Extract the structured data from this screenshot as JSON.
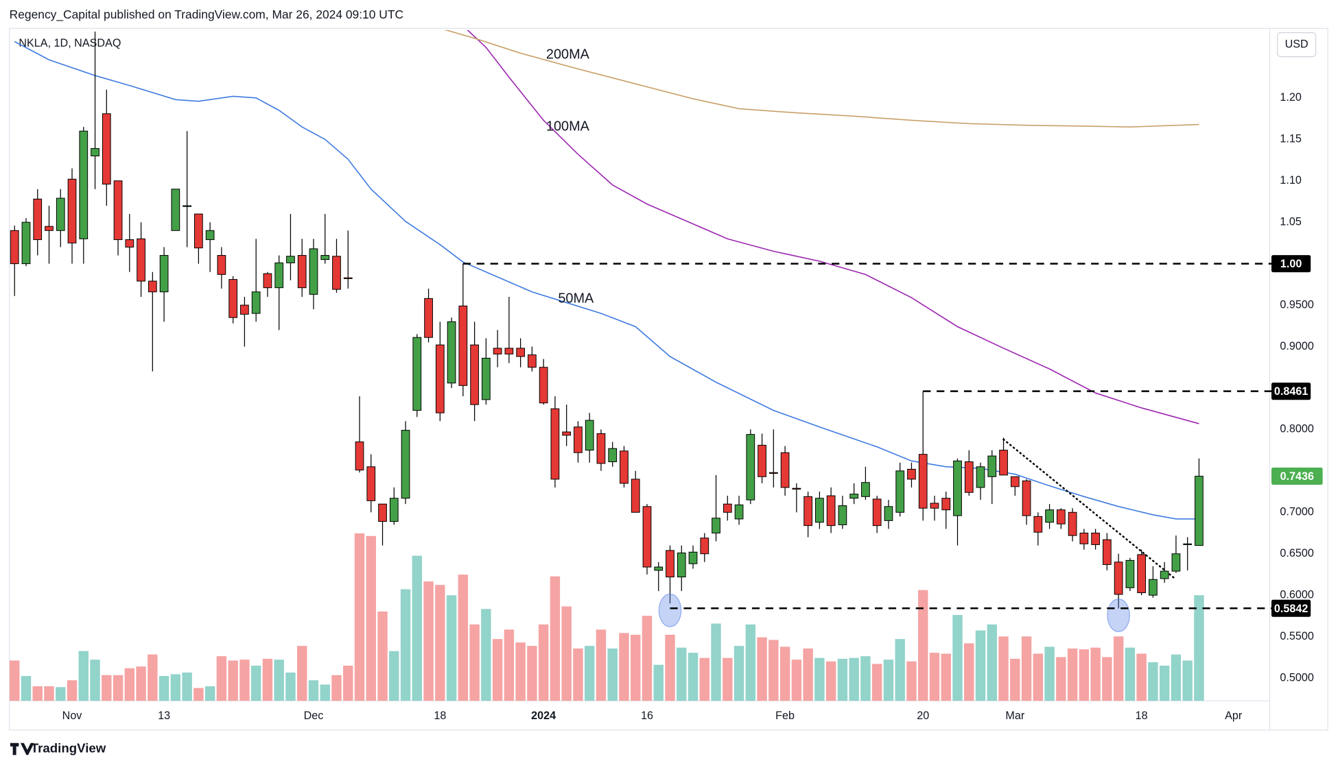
{
  "header": {
    "publisher": "Regency_Capital published on TradingView.com, Mar 26, 2024 09:10 UTC",
    "symbol": "NKLA, 1D, NASDAQ",
    "currency": "USD",
    "footer": "TradingView"
  },
  "chart_data": {
    "type": "candlestick",
    "xlim": [
      -0.45,
      109.15
    ],
    "ylim": [
      0.4725,
      1.2819
    ],
    "vlim": [
      0,
      781
    ],
    "grid": false,
    "xticks": [
      {
        "value": 5,
        "label": "Nov"
      },
      {
        "value": 13,
        "label": "13"
      },
      {
        "value": 26,
        "label": "Dec"
      },
      {
        "value": 37,
        "label": "18"
      },
      {
        "value": 46,
        "label": "2024"
      },
      {
        "value": 55,
        "label": "16"
      },
      {
        "value": 67,
        "label": "Feb"
      },
      {
        "value": 79,
        "label": "20"
      },
      {
        "value": 87,
        "label": "Mar"
      },
      {
        "value": 98,
        "label": "18"
      },
      {
        "value": 106,
        "label": "Apr"
      }
    ],
    "yticks": [
      {
        "value": 1.2,
        "label": "1.20"
      },
      1.15,
      {
        "value": 1.1,
        "label": "1.10"
      },
      1.05,
      {
        "value": 0.95,
        "label": "0.9500"
      },
      {
        "value": 0.9,
        "label": "0.9000"
      },
      {
        "value": 0.8,
        "label": "0.8000"
      },
      {
        "value": 0.7,
        "label": "0.7000"
      },
      {
        "value": 0.65,
        "label": "0.6500"
      },
      {
        "value": 0.6,
        "label": "0.6000"
      },
      {
        "value": 0.55,
        "label": "0.5500"
      },
      {
        "value": 0.5,
        "label": "0.5000"
      }
    ],
    "up_color": "#43a047",
    "down_color": "#e53935",
    "volume_up_color": "#92d3ca",
    "volume_down_color": "#f5a3a3",
    "open": [
      1.04,
      1.0,
      1.078,
      1.045,
      1.04,
      1.102,
      1.03,
      1.13,
      1.181,
      1.1,
      1.029,
      1.03,
      0.979,
      0.966,
      1.04,
      1.069,
      1.06,
      1.029,
      1.01,
      0.981,
      0.95,
      0.94,
      0.988,
      0.971,
      1.001,
      1.01,
      0.963,
      1.005,
      1.009,
      0.983,
      0.785,
      0.755,
      0.71,
      0.689,
      0.717,
      0.823,
      0.958,
      0.902,
      0.856,
      0.949,
      0.902,
      0.836,
      0.898,
      0.898,
      0.898,
      0.89,
      0.875,
      0.825,
      0.797,
      0.803,
      0.775,
      0.795,
      0.761,
      0.774,
      0.74,
      0.707,
      0.63,
      0.654,
      0.622,
      0.638,
      0.669,
      0.675,
      0.71,
      0.692,
      0.715,
      0.781,
      0.748,
      0.772,
      0.729,
      0.719,
      0.688,
      0.72,
      0.685,
      0.717,
      0.719,
      0.716,
      0.69,
      0.7,
      0.752,
      0.77,
      0.711,
      0.717,
      0.696,
      0.761,
      0.73,
      0.743,
      0.775,
      0.743,
      0.738,
      0.695,
      0.688,
      0.703,
      0.7,
      0.675,
      0.675,
      0.667,
      0.64,
      0.609,
      0.649,
      0.6,
      0.62,
      0.629,
      0.661,
      0.66
    ],
    "high": [
      1.046,
      1.055,
      1.09,
      1.07,
      1.09,
      1.115,
      1.165,
      1.28,
      1.21,
      1.1,
      1.06,
      1.05,
      0.99,
      1.02,
      1.09,
      1.16,
      1.06,
      1.05,
      1.02,
      0.985,
      0.96,
      1.03,
      0.99,
      1.01,
      1.06,
      1.03,
      1.03,
      1.06,
      1.03,
      1.04,
      0.84,
      0.77,
      0.71,
      0.73,
      0.81,
      0.915,
      0.97,
      0.93,
      0.935,
      1.0,
      0.93,
      0.91,
      0.92,
      0.96,
      0.91,
      0.9,
      0.885,
      0.84,
      0.83,
      0.81,
      0.82,
      0.8,
      0.785,
      0.78,
      0.75,
      0.71,
      0.64,
      0.66,
      0.66,
      0.66,
      0.675,
      0.745,
      0.72,
      0.72,
      0.8,
      0.795,
      0.8,
      0.78,
      0.735,
      0.725,
      0.725,
      0.73,
      0.72,
      0.735,
      0.755,
      0.72,
      0.715,
      0.76,
      0.76,
      0.8461,
      0.72,
      0.725,
      0.765,
      0.775,
      0.76,
      0.775,
      0.79,
      0.74,
      0.74,
      0.7,
      0.71,
      0.705,
      0.705,
      0.68,
      0.68,
      0.675,
      0.65,
      0.645,
      0.655,
      0.635,
      0.64,
      0.672,
      0.67,
      0.765
    ],
    "low": [
      0.961,
      0.997,
      1.01,
      1.0,
      1.02,
      1.0,
      1.0,
      1.09,
      1.07,
      1.01,
      0.99,
      0.96,
      0.87,
      0.93,
      1.04,
      1.02,
      1.0,
      0.99,
      0.97,
      0.928,
      0.9,
      0.93,
      0.96,
      0.92,
      0.98,
      0.96,
      0.945,
      1.0,
      0.965,
      0.97,
      0.748,
      0.7,
      0.66,
      0.685,
      0.71,
      0.815,
      0.905,
      0.81,
      0.85,
      0.84,
      0.81,
      0.83,
      0.875,
      0.88,
      0.875,
      0.87,
      0.83,
      0.73,
      0.78,
      0.76,
      0.76,
      0.75,
      0.755,
      0.73,
      0.7,
      0.625,
      0.605,
      0.59,
      0.605,
      0.632,
      0.64,
      0.665,
      0.69,
      0.685,
      0.71,
      0.735,
      0.73,
      0.72,
      0.7,
      0.67,
      0.68,
      0.675,
      0.68,
      0.71,
      0.715,
      0.675,
      0.68,
      0.695,
      0.73,
      0.69,
      0.69,
      0.68,
      0.66,
      0.72,
      0.715,
      0.71,
      0.745,
      0.72,
      0.685,
      0.66,
      0.68,
      0.68,
      0.665,
      0.655,
      0.655,
      0.63,
      0.584,
      0.605,
      0.6,
      0.597,
      0.615,
      0.627,
      0.63,
      0.66
    ],
    "close": [
      1.0,
      1.05,
      1.029,
      1.04,
      1.079,
      1.025,
      1.16,
      1.139,
      1.096,
      1.029,
      1.02,
      0.979,
      0.966,
      1.01,
      1.09,
      1.07,
      1.019,
      1.04,
      0.987,
      0.935,
      0.939,
      0.966,
      0.971,
      1.001,
      1.009,
      0.971,
      1.018,
      1.01,
      0.969,
      0.982,
      0.751,
      0.714,
      0.689,
      0.717,
      0.799,
      0.911,
      0.911,
      0.82,
      0.93,
      0.853,
      0.83,
      0.886,
      0.891,
      0.891,
      0.888,
      0.875,
      0.832,
      0.74,
      0.793,
      0.772,
      0.811,
      0.759,
      0.777,
      0.735,
      0.7,
      0.634,
      0.634,
      0.622,
      0.651,
      0.652,
      0.65,
      0.693,
      0.7,
      0.709,
      0.794,
      0.743,
      0.747,
      0.73,
      0.728,
      0.684,
      0.717,
      0.684,
      0.708,
      0.722,
      0.736,
      0.684,
      0.707,
      0.75,
      0.74,
      0.705,
      0.705,
      0.703,
      0.762,
      0.724,
      0.755,
      0.768,
      0.745,
      0.731,
      0.696,
      0.676,
      0.703,
      0.686,
      0.672,
      0.662,
      0.661,
      0.637,
      0.601,
      0.642,
      0.603,
      0.619,
      0.629,
      0.65,
      0.662,
      0.7436
    ],
    "volume": [
      47,
      29,
      17,
      17,
      16,
      24,
      58,
      48,
      30,
      30,
      38,
      40,
      54,
      29,
      31,
      33,
      15,
      17,
      52,
      47,
      48,
      41,
      49,
      48,
      33,
      64,
      24,
      19,
      30,
      41,
      195,
      192,
      104,
      58,
      130,
      169,
      139,
      135,
      123,
      147,
      89,
      107,
      72,
      83,
      68,
      64,
      89,
      145,
      110,
      61,
      64,
      83,
      61,
      79,
      77,
      99,
      42,
      77,
      62,
      56,
      50,
      90,
      50,
      64,
      89,
      74,
      71,
      63,
      48,
      61,
      50,
      46,
      49,
      50,
      52,
      43,
      48,
      72,
      46,
      129,
      56,
      55,
      100,
      67,
      82,
      89,
      75,
      49,
      75,
      55,
      63,
      51,
      61,
      60,
      62,
      51,
      75,
      62,
      55,
      45,
      41,
      54,
      47,
      123
    ],
    "ma": [
      {
        "name": "50MA",
        "color": "#3f7be0",
        "x": [
          0,
          3,
          7,
          10,
          14,
          16,
          19,
          21,
          23,
          25,
          27,
          29,
          31,
          34,
          37,
          39,
          42,
          45,
          48,
          51,
          54,
          57,
          61,
          66,
          70,
          75,
          78,
          81,
          84,
          87,
          90,
          93,
          96,
          99,
          101,
          103
        ],
        "values": [
          1.268,
          1.246,
          1.227,
          1.215,
          1.198,
          1.196,
          1.202,
          1.2,
          1.185,
          1.165,
          1.15,
          1.126,
          1.09,
          1.051,
          1.023,
          1.002,
          0.984,
          0.966,
          0.953,
          0.94,
          0.924,
          0.888,
          0.857,
          0.823,
          0.803,
          0.779,
          0.762,
          0.755,
          0.753,
          0.746,
          0.732,
          0.719,
          0.707,
          0.697,
          0.692,
          0.692
        ]
      },
      {
        "name": "100MA",
        "color": "#9c27b0",
        "x": [
          39,
          41,
          43,
          46,
          49,
          52,
          55,
          58,
          62,
          66,
          70,
          74,
          78,
          82,
          86,
          90,
          94,
          98,
          103
        ],
        "values": [
          1.287,
          1.261,
          1.225,
          1.173,
          1.132,
          1.095,
          1.072,
          1.054,
          1.03,
          1.015,
          1.003,
          0.987,
          0.959,
          0.924,
          0.898,
          0.873,
          0.844,
          0.826,
          0.807
        ]
      },
      {
        "name": "200MA",
        "color": "#c9a06a",
        "x": [
          37,
          40,
          44,
          49,
          54,
          59,
          63,
          68,
          73,
          78,
          83,
          88,
          93,
          97,
          103
        ],
        "values": [
          1.284,
          1.272,
          1.254,
          1.235,
          1.217,
          1.199,
          1.187,
          1.182,
          1.178,
          1.173,
          1.169,
          1.167,
          1.166,
          1.165,
          1.168
        ]
      }
    ],
    "levels": [
      {
        "value": 1,
        "label": "1.00",
        "start": 39
      },
      {
        "value": 0.8461,
        "start": 79
      },
      {
        "value": 0.5842,
        "start": 57
      }
    ],
    "last_price": 0.7436,
    "last_price_color": "#4caf50",
    "trendline": {
      "x": [
        86,
        101
      ],
      "values": [
        0.788,
        0.619
      ]
    },
    "highlight_index": [
      57,
      96
    ]
  }
}
